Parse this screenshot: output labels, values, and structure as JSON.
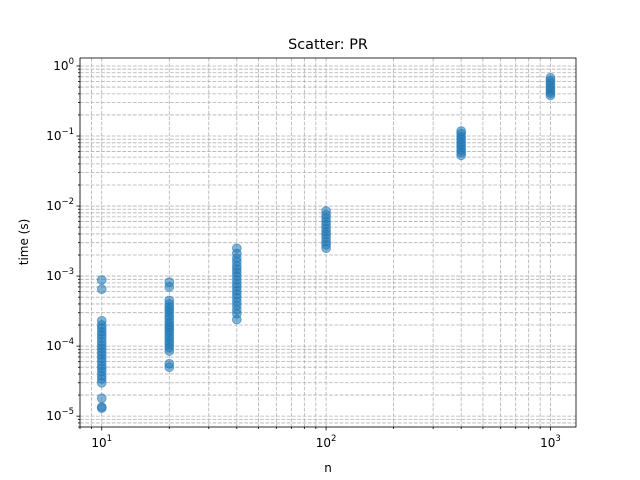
{
  "chart_data": {
    "type": "scatter",
    "title": "Scatter: PR",
    "xlabel": "n",
    "ylabel": "time (s)",
    "xscale": "log",
    "yscale": "log",
    "xlim": [
      8,
      1300
    ],
    "ylim": [
      7e-06,
      1.3
    ],
    "grid": true,
    "grid_minor": true,
    "xticks": [
      {
        "value": 10,
        "base": "10",
        "exp": "1"
      },
      {
        "value": 100,
        "base": "10",
        "exp": "2"
      },
      {
        "value": 1000,
        "base": "10",
        "exp": "3"
      }
    ],
    "yticks": [
      {
        "value": 1e-05,
        "base": "10",
        "exp": "−5"
      },
      {
        "value": 0.0001,
        "base": "10",
        "exp": "−4"
      },
      {
        "value": 0.001,
        "base": "10",
        "exp": "−3"
      },
      {
        "value": 0.01,
        "base": "10",
        "exp": "−2"
      },
      {
        "value": 0.1,
        "base": "10",
        "exp": "−1"
      },
      {
        "value": 1,
        "base": "10",
        "exp": "0"
      }
    ],
    "marker_color": "#1f77b4",
    "marker_alpha": 0.55,
    "series": [
      {
        "points": [
          [
            10,
            1.3e-05
          ],
          [
            10,
            1.35e-05
          ],
          [
            10,
            1.8e-05
          ],
          [
            10,
            3e-05
          ],
          [
            10,
            3.4e-05
          ],
          [
            10,
            3.8e-05
          ],
          [
            10,
            4.3e-05
          ],
          [
            10,
            4.8e-05
          ],
          [
            10,
            5.3e-05
          ],
          [
            10,
            6e-05
          ],
          [
            10,
            6.7e-05
          ],
          [
            10,
            7.5e-05
          ],
          [
            10,
            8.3e-05
          ],
          [
            10,
            9.3e-05
          ],
          [
            10,
            0.000103
          ],
          [
            10,
            0.000115
          ],
          [
            10,
            0.00013
          ],
          [
            10,
            0.000145
          ],
          [
            10,
            0.00016
          ],
          [
            10,
            0.00018
          ],
          [
            10,
            0.0002
          ],
          [
            10,
            0.00023
          ],
          [
            10,
            0.00065
          ],
          [
            10,
            0.00088
          ],
          [
            20,
            5e-05
          ],
          [
            20,
            5.6e-05
          ],
          [
            20,
            8.5e-05
          ],
          [
            20,
            9.5e-05
          ],
          [
            20,
            0.000105
          ],
          [
            20,
            0.000115
          ],
          [
            20,
            0.000128
          ],
          [
            20,
            0.00014
          ],
          [
            20,
            0.000155
          ],
          [
            20,
            0.00017
          ],
          [
            20,
            0.000185
          ],
          [
            20,
            0.0002
          ],
          [
            20,
            0.00022
          ],
          [
            20,
            0.000245
          ],
          [
            20,
            0.00027
          ],
          [
            20,
            0.0003
          ],
          [
            20,
            0.00033
          ],
          [
            20,
            0.00036
          ],
          [
            20,
            0.0004
          ],
          [
            20,
            0.00045
          ],
          [
            20,
            0.0007
          ],
          [
            20,
            0.00082
          ],
          [
            40,
            0.00024
          ],
          [
            40,
            0.00029
          ],
          [
            40,
            0.00033
          ],
          [
            40,
            0.00038
          ],
          [
            40,
            0.00043
          ],
          [
            40,
            0.00049
          ],
          [
            40,
            0.00055
          ],
          [
            40,
            0.00062
          ],
          [
            40,
            0.0007
          ],
          [
            40,
            0.00078
          ],
          [
            40,
            0.00088
          ],
          [
            40,
            0.001
          ],
          [
            40,
            0.00112
          ],
          [
            40,
            0.00125
          ],
          [
            40,
            0.0014
          ],
          [
            40,
            0.0016
          ],
          [
            40,
            0.0018
          ],
          [
            40,
            0.0021
          ],
          [
            40,
            0.0025
          ],
          [
            100,
            0.0025
          ],
          [
            100,
            0.0028
          ],
          [
            100,
            0.0031
          ],
          [
            100,
            0.0035
          ],
          [
            100,
            0.0039
          ],
          [
            100,
            0.0043
          ],
          [
            100,
            0.0048
          ],
          [
            100,
            0.0054
          ],
          [
            100,
            0.006
          ],
          [
            100,
            0.0067
          ],
          [
            100,
            0.0075
          ],
          [
            100,
            0.0085
          ],
          [
            400,
            0.053
          ],
          [
            400,
            0.058
          ],
          [
            400,
            0.063
          ],
          [
            400,
            0.069
          ],
          [
            400,
            0.075
          ],
          [
            400,
            0.082
          ],
          [
            400,
            0.09
          ],
          [
            400,
            0.098
          ],
          [
            400,
            0.108
          ],
          [
            400,
            0.118
          ],
          [
            1000,
            0.38
          ],
          [
            1000,
            0.41
          ],
          [
            1000,
            0.44
          ],
          [
            1000,
            0.48
          ],
          [
            1000,
            0.52
          ],
          [
            1000,
            0.57
          ],
          [
            1000,
            0.62
          ],
          [
            1000,
            0.68
          ]
        ]
      }
    ]
  }
}
